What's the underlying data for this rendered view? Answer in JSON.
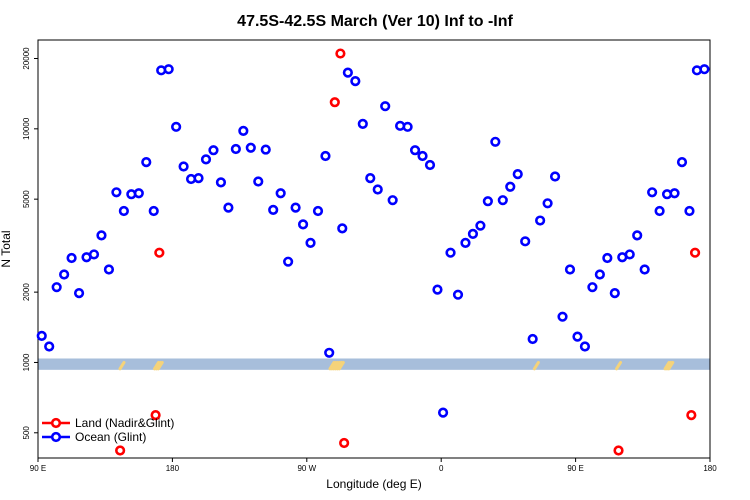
{
  "chart_data": {
    "type": "scatter",
    "title": "47.5S-42.5S March (Ver 10)   Inf to -Inf",
    "xlabel": "Longitude (deg E)",
    "ylabel": "N Total",
    "y_scale": "log",
    "xlim": [
      90,
      450
    ],
    "ylim": [
      390,
      24000
    ],
    "x_ticks": [
      {
        "value": 90,
        "label": "90 E"
      },
      {
        "value": 162,
        "label": "180"
      },
      {
        "value": 234,
        "label": "90 W"
      },
      {
        "value": 306,
        "label": "0"
      },
      {
        "value": 378,
        "label": "90 E"
      },
      {
        "value": 450,
        "label": "180"
      }
    ],
    "y_ticks": [
      {
        "value": 500,
        "label": "500"
      },
      {
        "value": 1000,
        "label": "1000"
      },
      {
        "value": 2000,
        "label": "2000"
      },
      {
        "value": 5000,
        "label": "5000"
      },
      {
        "value": 10000,
        "label": "10000"
      },
      {
        "value": 20000,
        "label": "20000"
      }
    ],
    "band": {
      "y_low": 930,
      "y_high": 1040,
      "color": "#a7bedb"
    },
    "band_marks_color": "#f5d37a",
    "band_marks": [
      135,
      153.5,
      154.5,
      155.5,
      247.5,
      248.5,
      249.5,
      250.5,
      251.5,
      252.5,
      357,
      401,
      427,
      428,
      429
    ],
    "legend": {
      "position": "bottom-left"
    },
    "series": [
      {
        "name": "Land (Nadir&Glint)",
        "color": "#ff0000",
        "points": [
          [
            134,
            420
          ],
          [
            153,
            595
          ],
          [
            155,
            2950
          ],
          [
            249,
            13000
          ],
          [
            252,
            21000
          ],
          [
            254,
            452
          ],
          [
            401,
            420
          ],
          [
            440,
            595
          ],
          [
            442,
            2950
          ]
        ]
      },
      {
        "name": "Ocean (Glint)",
        "color": "#0000ff",
        "points": [
          [
            92,
            1300
          ],
          [
            96,
            1170
          ],
          [
            100,
            2100
          ],
          [
            104,
            2380
          ],
          [
            108,
            2800
          ],
          [
            112,
            1980
          ],
          [
            116,
            2820
          ],
          [
            120,
            2900
          ],
          [
            124,
            3500
          ],
          [
            128,
            2500
          ],
          [
            132,
            5350
          ],
          [
            136,
            4450
          ],
          [
            140,
            5250
          ],
          [
            144,
            5300
          ],
          [
            148,
            7200
          ],
          [
            152,
            4450
          ],
          [
            156,
            17800
          ],
          [
            160,
            18000
          ],
          [
            164,
            10200
          ],
          [
            168,
            6900
          ],
          [
            172,
            6100
          ],
          [
            176,
            6150
          ],
          [
            180,
            7400
          ],
          [
            184,
            8100
          ],
          [
            188,
            5900
          ],
          [
            192,
            4600
          ],
          [
            196,
            8200
          ],
          [
            200,
            9800
          ],
          [
            204,
            8300
          ],
          [
            208,
            5950
          ],
          [
            212,
            8150
          ],
          [
            216,
            4500
          ],
          [
            220,
            5300
          ],
          [
            224,
            2700
          ],
          [
            228,
            4600
          ],
          [
            232,
            3900
          ],
          [
            236,
            3250
          ],
          [
            240,
            4450
          ],
          [
            244,
            7650
          ],
          [
            246,
            1100
          ],
          [
            253,
            3750
          ],
          [
            256,
            17400
          ],
          [
            260,
            16000
          ],
          [
            264,
            10500
          ],
          [
            268,
            6150
          ],
          [
            272,
            5500
          ],
          [
            276,
            12500
          ],
          [
            280,
            4950
          ],
          [
            284,
            10300
          ],
          [
            288,
            10200
          ],
          [
            292,
            8100
          ],
          [
            296,
            7650
          ],
          [
            300,
            7000
          ],
          [
            304,
            2050
          ],
          [
            307,
            610
          ],
          [
            311,
            2950
          ],
          [
            315,
            1950
          ],
          [
            319,
            3250
          ],
          [
            323,
            3550
          ],
          [
            327,
            3850
          ],
          [
            331,
            4900
          ],
          [
            335,
            8800
          ],
          [
            339,
            4950
          ],
          [
            343,
            5650
          ],
          [
            347,
            6400
          ],
          [
            351,
            3300
          ],
          [
            355,
            1260
          ],
          [
            359,
            4050
          ],
          [
            363,
            4800
          ],
          [
            367,
            6250
          ],
          [
            371,
            1570
          ],
          [
            375,
            2500
          ],
          [
            379,
            1290
          ],
          [
            383,
            1170
          ],
          [
            387,
            2100
          ],
          [
            391,
            2380
          ],
          [
            395,
            2800
          ],
          [
            399,
            1980
          ],
          [
            403,
            2820
          ],
          [
            407,
            2900
          ],
          [
            411,
            3500
          ],
          [
            415,
            2500
          ],
          [
            419,
            5350
          ],
          [
            423,
            4450
          ],
          [
            427,
            5250
          ],
          [
            431,
            5300
          ],
          [
            435,
            7200
          ],
          [
            439,
            4450
          ],
          [
            443,
            17800
          ],
          [
            447,
            18000
          ]
        ]
      }
    ]
  }
}
